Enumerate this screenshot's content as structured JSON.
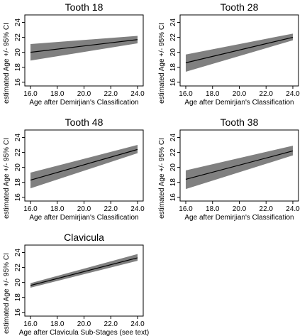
{
  "figure_ylabel": "estimated Age +/- 95% CI",
  "colors": {
    "band": "#808080",
    "line": "#000000",
    "frame": "#000000"
  },
  "chart_data": [
    {
      "type": "line",
      "title": "Tooth 18",
      "xlabel": "Age after Demirjian's Classification",
      "ylabel": "estimated Age +/- 95% CI",
      "xlim": [
        16,
        24
      ],
      "ylim": [
        15.5,
        25
      ],
      "xticks": [
        16,
        18,
        20,
        22,
        24
      ],
      "xtick_labels": [
        "16.0",
        "18.0",
        "20.0",
        "22.0",
        "24.0"
      ],
      "yticks": [
        16,
        18,
        20,
        22,
        24
      ],
      "ytick_labels": [
        "16",
        "18",
        "20",
        "22",
        "24"
      ],
      "series": [
        {
          "x": [
            16,
            24
          ],
          "estimate": [
            20.0,
            21.7
          ],
          "lower": [
            18.9,
            21.2
          ],
          "upper": [
            21.1,
            22.2
          ]
        }
      ]
    },
    {
      "type": "line",
      "title": "Tooth 28",
      "xlabel": "Age after Demirjian's Classification",
      "ylabel": "estimated Age +/- 95% CI",
      "xlim": [
        16,
        24
      ],
      "ylim": [
        15.5,
        25
      ],
      "xticks": [
        16,
        18,
        20,
        22,
        24
      ],
      "xtick_labels": [
        "16.0",
        "18.0",
        "20.0",
        "22.0",
        "24.0"
      ],
      "yticks": [
        16,
        18,
        20,
        22,
        24
      ],
      "ytick_labels": [
        "16",
        "18",
        "20",
        "22",
        "24"
      ],
      "series": [
        {
          "x": [
            16,
            24
          ],
          "estimate": [
            18.6,
            22.0
          ],
          "lower": [
            17.4,
            21.6
          ],
          "upper": [
            19.7,
            22.5
          ]
        }
      ]
    },
    {
      "type": "line",
      "title": "Tooth 48",
      "xlabel": "Age after Demirjian's Classification",
      "ylabel": "estimated Age +/- 95% CI",
      "xlim": [
        16,
        24
      ],
      "ylim": [
        15.5,
        25
      ],
      "xticks": [
        16,
        18,
        20,
        22,
        24
      ],
      "xtick_labels": [
        "16.0",
        "18.0",
        "20.0",
        "22.0",
        "24.0"
      ],
      "yticks": [
        16,
        18,
        20,
        22,
        24
      ],
      "ytick_labels": [
        "16",
        "18",
        "20",
        "22",
        "24"
      ],
      "series": [
        {
          "x": [
            16,
            24
          ],
          "estimate": [
            18.3,
            22.4
          ],
          "lower": [
            17.2,
            21.9
          ],
          "upper": [
            19.3,
            23.0
          ]
        }
      ]
    },
    {
      "type": "line",
      "title": "Tooth 38",
      "xlabel": "Age after Demirjian's Classification",
      "ylabel": "estimated Age +/- 95% CI",
      "xlim": [
        16,
        24
      ],
      "ylim": [
        15.5,
        25
      ],
      "xticks": [
        16,
        18,
        20,
        22,
        24
      ],
      "xtick_labels": [
        "16.0",
        "18.0",
        "20.0",
        "22.0",
        "24.0"
      ],
      "yticks": [
        16,
        18,
        20,
        22,
        24
      ],
      "ytick_labels": [
        "16",
        "18",
        "20",
        "22",
        "24"
      ],
      "series": [
        {
          "x": [
            16,
            24
          ],
          "estimate": [
            18.4,
            22.2
          ],
          "lower": [
            17.1,
            21.6
          ],
          "upper": [
            19.6,
            22.9
          ]
        }
      ]
    },
    {
      "type": "line",
      "title": "Clavicula",
      "xlabel": "Age after Clavicula Sub-Stages (see text)",
      "ylabel": "estimated Age +/- 95% CI",
      "xlim": [
        16,
        24
      ],
      "ylim": [
        15.5,
        25
      ],
      "xticks": [
        16,
        18,
        20,
        22,
        24
      ],
      "xtick_labels": [
        "16.0",
        "18.0",
        "20.0",
        "22.0",
        "24.0"
      ],
      "yticks": [
        16,
        18,
        20,
        22,
        24
      ],
      "ytick_labels": [
        "16",
        "18",
        "20",
        "22",
        "24"
      ],
      "series": [
        {
          "x": [
            16,
            24
          ],
          "estimate": [
            19.6,
            23.3
          ],
          "lower": [
            19.3,
            22.9
          ],
          "upper": [
            19.9,
            23.8
          ]
        }
      ]
    }
  ]
}
